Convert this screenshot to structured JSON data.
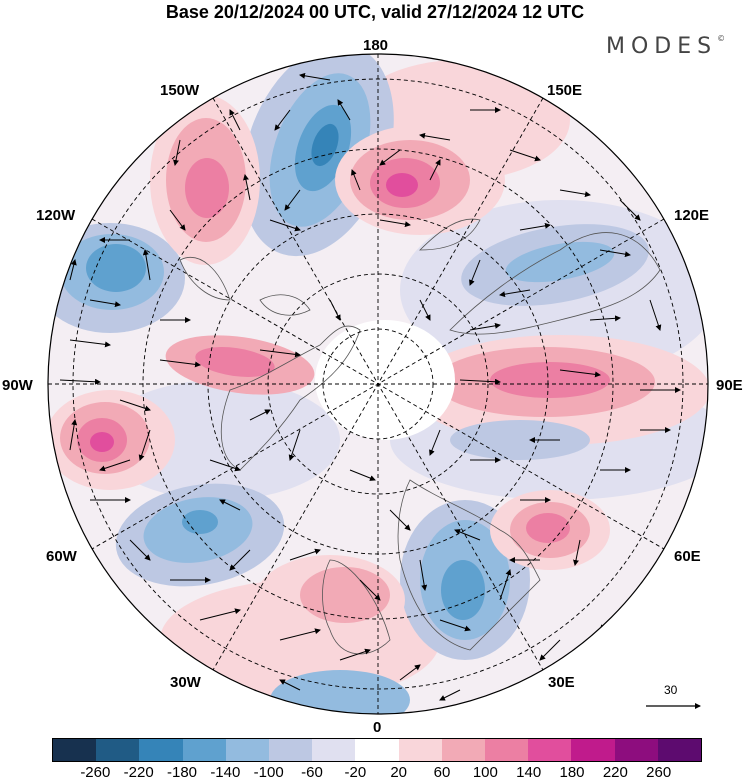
{
  "title": "Base 20/12/2024 00 UTC, valid 27/12/2024 12 UTC",
  "logo": "MODES",
  "logo_mark": "©",
  "longitude_labels": {
    "top": "180",
    "bottom": "0",
    "left": "90W",
    "right": "90E",
    "upper_left_1": "150W",
    "upper_left_2": "120W",
    "upper_right_1": "150E",
    "upper_right_2": "120E",
    "lower_left_1": "60W",
    "lower_left_2": "30W",
    "lower_right_1": "60E",
    "lower_right_2": "30E"
  },
  "reference_vector": "30",
  "colorbar": {
    "colors": [
      "#17314f",
      "#205b85",
      "#3584b8",
      "#5fa1cf",
      "#93bbdf",
      "#bdc8e3",
      "#e0e0f0",
      "#ffffff",
      "#f9d6da",
      "#f2aab6",
      "#ec7fa3",
      "#e14e9d",
      "#c01b8c",
      "#8d0d7e",
      "#5d0b6f"
    ],
    "ticks": [
      "-260",
      "-220",
      "-180",
      "-140",
      "-100",
      "-60",
      "-20",
      "20",
      "60",
      "100",
      "140",
      "180",
      "220",
      "260"
    ]
  },
  "map": {
    "projection": "north-polar-stereographic",
    "field_colors": {
      "strong_pos": "#e14e9d",
      "pos": "#ec7fa3",
      "weak_pos": "#f2aab6",
      "faint_pos": "#f9d6da",
      "faint_neg": "#e0e0f0",
      "weak_neg": "#bdc8e3",
      "neg": "#93bbdf",
      "strong_neg": "#3584b8"
    }
  }
}
